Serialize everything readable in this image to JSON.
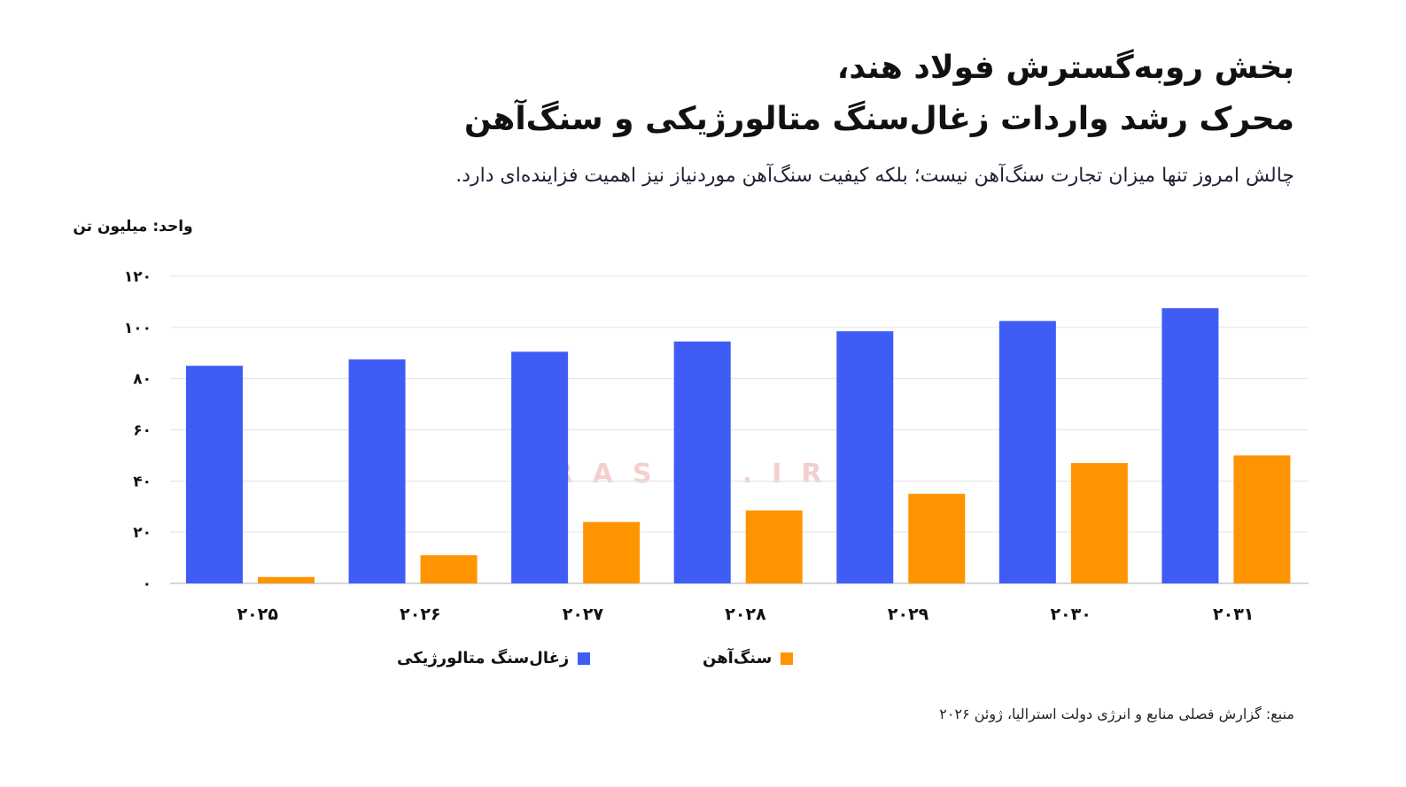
{
  "title": {
    "line1": "بخش روبه‌گسترش فولاد هند،",
    "line2": "محرک رشد واردات زغال‌سنگ متالورژیکی و سنگ‌آهن"
  },
  "subtitle": "چالش امروز تنها میزان تجارت سنگ‌آهن نیست؛ بلکه کیفیت سنگ‌آهن موردنیاز نیز اهمیت فزاینده‌ای دارد.",
  "unit_label": "واحد: میلیون تن",
  "source": "منبع: گزارش فصلی منابع و انرژی دولت استرالیا، ژوئن ۲۰۲۶",
  "watermark": {
    "text": "IRASIN.IR",
    "color": "#f3c4c4"
  },
  "chart_data": {
    "type": "bar",
    "categories": [
      "۲۰۲۵",
      "۲۰۲۶",
      "۲۰۲۷",
      "۲۰۲۸",
      "۲۰۲۹",
      "۲۰۳۰",
      "۲۰۳۱"
    ],
    "series": [
      {
        "name": "زغال‌سنگ متالورژیکی",
        "color": "#3f5df5",
        "values": [
          85,
          87.5,
          90.5,
          94.5,
          98.5,
          102.5,
          107.5
        ]
      },
      {
        "name": "سنگ‌آهن",
        "color": "#fe9500",
        "values": [
          2.5,
          11,
          24,
          28.5,
          35,
          47,
          50
        ]
      }
    ],
    "ylim": [
      0,
      120
    ],
    "yticks": [
      0,
      20,
      40,
      60,
      80,
      100,
      120
    ],
    "ytick_labels": [
      "۰",
      "۲۰",
      "۴۰",
      "۶۰",
      "۸۰",
      "۱۰۰",
      "۱۲۰"
    ],
    "grid": true,
    "legend_position": "bottom"
  }
}
